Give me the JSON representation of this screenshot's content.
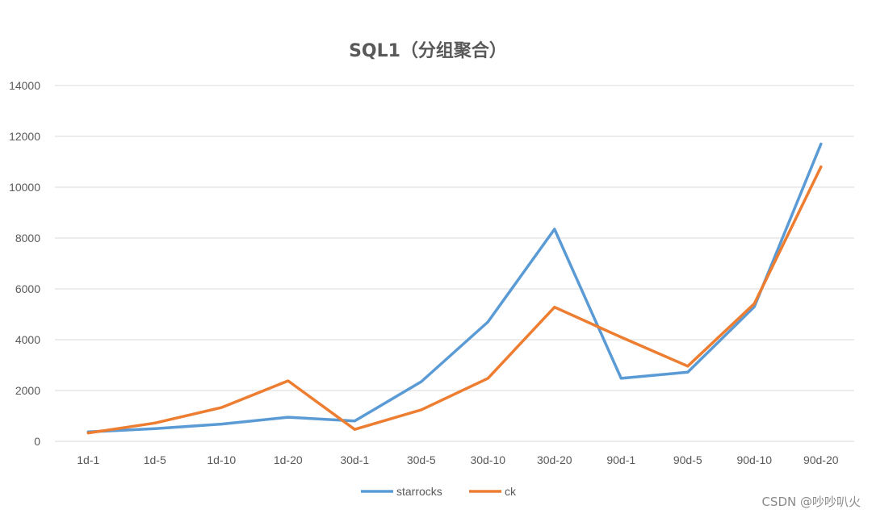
{
  "chart_data": {
    "type": "line",
    "title": "SQL1（分组聚合）",
    "xlabel": "",
    "ylabel": "",
    "categories": [
      "1d-1",
      "1d-5",
      "1d-10",
      "1d-20",
      "30d-1",
      "30d-5",
      "30d-10",
      "30d-20",
      "90d-1",
      "90d-5",
      "90d-10",
      "90d-20"
    ],
    "ylim": [
      0,
      14000
    ],
    "yticks": [
      0,
      2000,
      4000,
      6000,
      8000,
      10000,
      12000,
      14000
    ],
    "grid": true,
    "legend_position": "bottom",
    "series": [
      {
        "name": "starrocks",
        "color": "#5B9BD5",
        "values": [
          370,
          500,
          680,
          950,
          800,
          2350,
          4700,
          8350,
          2480,
          2720,
          5300,
          11700
        ]
      },
      {
        "name": "ck",
        "color": "#ED7D31",
        "values": [
          330,
          720,
          1330,
          2380,
          470,
          1240,
          2480,
          5280,
          4100,
          2960,
          5420,
          10800
        ]
      }
    ]
  },
  "watermark": "CSDN @吵吵叭火"
}
